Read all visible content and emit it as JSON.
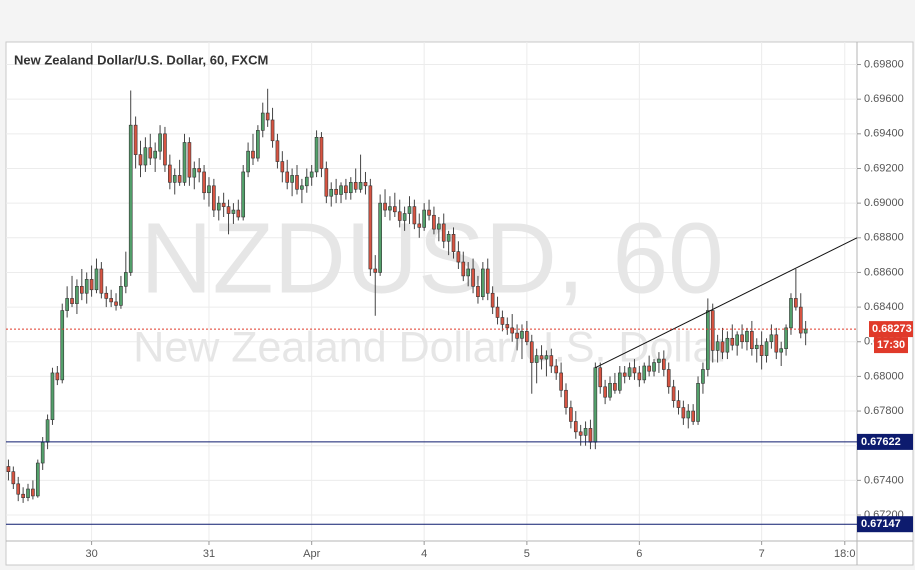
{
  "chart_data": {
    "type": "candlestick",
    "title": "New Zealand Dollar/U.S. Dollar, 60, FXCM",
    "watermark": [
      "NZDUSD, 60",
      "New Zealand Dollar/U.S. Dollar"
    ],
    "up_color": "#53a06b",
    "down_color": "#d75442",
    "grid": true,
    "xlim": [
      -0.5,
      173.5
    ],
    "xticks": [
      {
        "value": 17,
        "label": "30"
      },
      {
        "value": 41,
        "label": "31"
      },
      {
        "value": 62,
        "label": "Apr"
      },
      {
        "value": 85,
        "label": "4"
      },
      {
        "value": 106,
        "label": "5"
      },
      {
        "value": 129,
        "label": "6"
      },
      {
        "value": 154,
        "label": "7"
      },
      {
        "value": 171,
        "label": "18:0"
      }
    ],
    "ylim": [
      0.6705,
      0.6993
    ],
    "yticks": [
      {
        "value": 0.698,
        "label": "0.69800"
      },
      {
        "value": 0.696,
        "label": "0.69600"
      },
      {
        "value": 0.694,
        "label": "0.69400"
      },
      {
        "value": 0.692,
        "label": "0.69200"
      },
      {
        "value": 0.69,
        "label": "0.69000"
      },
      {
        "value": 0.688,
        "label": "0.68800"
      },
      {
        "value": 0.686,
        "label": "0.68600"
      },
      {
        "value": 0.684,
        "label": "0.68400"
      },
      {
        "value": 0.682,
        "label": "0.68200"
      },
      {
        "value": 0.68,
        "label": "0.68000"
      },
      {
        "value": 0.678,
        "label": "0.67800"
      },
      {
        "value": 0.676,
        "label": "0.67600"
      },
      {
        "value": 0.674,
        "label": "0.67400"
      },
      {
        "value": 0.672,
        "label": "0.67200"
      }
    ],
    "levels": [
      {
        "value": 0.67622,
        "label": "0.67622",
        "color": "#0d1b6e"
      },
      {
        "value": 0.67147,
        "label": "0.67147",
        "color": "#0d1b6e"
      }
    ],
    "last_price": {
      "value": 0.68273,
      "label": "0.68273",
      "countdown": "17:30",
      "color": "#e03a2a"
    },
    "trendline": {
      "x": [
        120,
        173.5
      ],
      "y": [
        0.6805,
        0.688
      ],
      "color": "#111111"
    },
    "ohlc": [
      [
        0.6748,
        0.6752,
        0.674,
        0.6745
      ],
      [
        0.6745,
        0.6748,
        0.6735,
        0.6738
      ],
      [
        0.6738,
        0.6742,
        0.6728,
        0.6732
      ],
      [
        0.6732,
        0.6736,
        0.6727,
        0.673
      ],
      [
        0.673,
        0.6738,
        0.6728,
        0.6735
      ],
      [
        0.6735,
        0.674,
        0.6729,
        0.6731
      ],
      [
        0.6731,
        0.6752,
        0.673,
        0.675
      ],
      [
        0.675,
        0.6765,
        0.6746,
        0.6762
      ],
      [
        0.6762,
        0.6778,
        0.6758,
        0.6775
      ],
      [
        0.6775,
        0.6805,
        0.6772,
        0.6802
      ],
      [
        0.6802,
        0.6806,
        0.6795,
        0.6798
      ],
      [
        0.6798,
        0.6842,
        0.6796,
        0.6838
      ],
      [
        0.6838,
        0.6852,
        0.6834,
        0.6845
      ],
      [
        0.6845,
        0.6858,
        0.684,
        0.6842
      ],
      [
        0.6842,
        0.6856,
        0.6836,
        0.6852
      ],
      [
        0.6852,
        0.6862,
        0.6844,
        0.6848
      ],
      [
        0.6848,
        0.686,
        0.6842,
        0.6856
      ],
      [
        0.6856,
        0.6864,
        0.6846,
        0.685
      ],
      [
        0.685,
        0.6868,
        0.6848,
        0.6862
      ],
      [
        0.6862,
        0.6866,
        0.6845,
        0.6848
      ],
      [
        0.6848,
        0.6852,
        0.684,
        0.6845
      ],
      [
        0.6845,
        0.685,
        0.684,
        0.6843
      ],
      [
        0.6843,
        0.6848,
        0.6838,
        0.6841
      ],
      [
        0.6841,
        0.6858,
        0.6839,
        0.6852
      ],
      [
        0.6852,
        0.6872,
        0.6848,
        0.686
      ],
      [
        0.686,
        0.6965,
        0.6858,
        0.6945
      ],
      [
        0.6945,
        0.695,
        0.692,
        0.6928
      ],
      [
        0.6928,
        0.6936,
        0.6915,
        0.6922
      ],
      [
        0.6922,
        0.6938,
        0.6918,
        0.6932
      ],
      [
        0.6932,
        0.694,
        0.6922,
        0.6926
      ],
      [
        0.6926,
        0.6935,
        0.6918,
        0.693
      ],
      [
        0.693,
        0.6945,
        0.6925,
        0.694
      ],
      [
        0.694,
        0.6944,
        0.6918,
        0.6922
      ],
      [
        0.6922,
        0.6928,
        0.6908,
        0.6912
      ],
      [
        0.6912,
        0.692,
        0.6905,
        0.6916
      ],
      [
        0.6916,
        0.6925,
        0.691,
        0.6912
      ],
      [
        0.6912,
        0.694,
        0.691,
        0.6935
      ],
      [
        0.6935,
        0.6938,
        0.691,
        0.6915
      ],
      [
        0.6915,
        0.6924,
        0.6908,
        0.692
      ],
      [
        0.692,
        0.6926,
        0.6912,
        0.6918
      ],
      [
        0.6918,
        0.6922,
        0.6902,
        0.6906
      ],
      [
        0.6906,
        0.6915,
        0.6898,
        0.691
      ],
      [
        0.691,
        0.6914,
        0.6892,
        0.6896
      ],
      [
        0.6896,
        0.6904,
        0.689,
        0.69
      ],
      [
        0.69,
        0.6906,
        0.6892,
        0.6898
      ],
      [
        0.6898,
        0.6902,
        0.6882,
        0.6894
      ],
      [
        0.6894,
        0.69,
        0.6888,
        0.6896
      ],
      [
        0.6896,
        0.6902,
        0.689,
        0.6892
      ],
      [
        0.6892,
        0.6922,
        0.689,
        0.6918
      ],
      [
        0.6918,
        0.6935,
        0.6915,
        0.693
      ],
      [
        0.693,
        0.694,
        0.6922,
        0.6926
      ],
      [
        0.6926,
        0.6945,
        0.6924,
        0.6942
      ],
      [
        0.6942,
        0.6958,
        0.6938,
        0.6952
      ],
      [
        0.6952,
        0.6966,
        0.6944,
        0.6948
      ],
      [
        0.6948,
        0.6955,
        0.6932,
        0.6936
      ],
      [
        0.6936,
        0.694,
        0.692,
        0.6924
      ],
      [
        0.6924,
        0.693,
        0.6912,
        0.6918
      ],
      [
        0.6918,
        0.6925,
        0.6908,
        0.6912
      ],
      [
        0.6912,
        0.692,
        0.6904,
        0.6916
      ],
      [
        0.6916,
        0.6922,
        0.6905,
        0.6908
      ],
      [
        0.6908,
        0.6914,
        0.69,
        0.691
      ],
      [
        0.691,
        0.692,
        0.6906,
        0.6915
      ],
      [
        0.6915,
        0.6922,
        0.691,
        0.6918
      ],
      [
        0.6918,
        0.6942,
        0.6915,
        0.6938
      ],
      [
        0.6938,
        0.6941,
        0.6915,
        0.692
      ],
      [
        0.692,
        0.6924,
        0.69,
        0.6904
      ],
      [
        0.6904,
        0.6912,
        0.6898,
        0.6908
      ],
      [
        0.6908,
        0.6914,
        0.69,
        0.6905
      ],
      [
        0.6905,
        0.6912,
        0.69,
        0.691
      ],
      [
        0.691,
        0.6914,
        0.6902,
        0.6906
      ],
      [
        0.6906,
        0.6915,
        0.6902,
        0.6912
      ],
      [
        0.6912,
        0.692,
        0.6906,
        0.6908
      ],
      [
        0.6908,
        0.6928,
        0.6906,
        0.6912
      ],
      [
        0.6912,
        0.6918,
        0.6905,
        0.691
      ],
      [
        0.691,
        0.6914,
        0.6858,
        0.6862
      ],
      [
        0.6862,
        0.687,
        0.6835,
        0.686
      ],
      [
        0.686,
        0.6905,
        0.6858,
        0.69
      ],
      [
        0.69,
        0.6908,
        0.6892,
        0.6896
      ],
      [
        0.6896,
        0.6904,
        0.689,
        0.6898
      ],
      [
        0.6898,
        0.6906,
        0.6892,
        0.6895
      ],
      [
        0.6895,
        0.6902,
        0.6886,
        0.689
      ],
      [
        0.689,
        0.6898,
        0.6884,
        0.6894
      ],
      [
        0.6894,
        0.6904,
        0.6888,
        0.6898
      ],
      [
        0.6898,
        0.6902,
        0.6885,
        0.6888
      ],
      [
        0.6888,
        0.6894,
        0.688,
        0.6886
      ],
      [
        0.6886,
        0.69,
        0.6884,
        0.6896
      ],
      [
        0.6896,
        0.6902,
        0.689,
        0.6893
      ],
      [
        0.6893,
        0.6898,
        0.6882,
        0.6885
      ],
      [
        0.6885,
        0.6892,
        0.6878,
        0.6888
      ],
      [
        0.6888,
        0.6894,
        0.6874,
        0.6878
      ],
      [
        0.6878,
        0.6884,
        0.687,
        0.6882
      ],
      [
        0.6882,
        0.6886,
        0.6868,
        0.6872
      ],
      [
        0.6872,
        0.6878,
        0.6862,
        0.6866
      ],
      [
        0.6866,
        0.6872,
        0.6855,
        0.6858
      ],
      [
        0.6858,
        0.6866,
        0.6852,
        0.6862
      ],
      [
        0.6862,
        0.6868,
        0.6848,
        0.6852
      ],
      [
        0.6852,
        0.6858,
        0.6842,
        0.6846
      ],
      [
        0.6846,
        0.6866,
        0.6844,
        0.6862
      ],
      [
        0.6862,
        0.6868,
        0.6844,
        0.6848
      ],
      [
        0.6848,
        0.6852,
        0.6836,
        0.684
      ],
      [
        0.684,
        0.6846,
        0.683,
        0.6834
      ],
      [
        0.6834,
        0.6838,
        0.6826,
        0.683
      ],
      [
        0.683,
        0.6834,
        0.6824,
        0.6828
      ],
      [
        0.6828,
        0.6836,
        0.682,
        0.6825
      ],
      [
        0.6825,
        0.683,
        0.6815,
        0.6822
      ],
      [
        0.6822,
        0.683,
        0.681,
        0.6826
      ],
      [
        0.6826,
        0.6832,
        0.6818,
        0.682
      ],
      [
        0.682,
        0.6824,
        0.679,
        0.6808
      ],
      [
        0.6808,
        0.6816,
        0.6796,
        0.6812
      ],
      [
        0.6812,
        0.6818,
        0.6804,
        0.681
      ],
      [
        0.681,
        0.6815,
        0.68,
        0.6812
      ],
      [
        0.6812,
        0.6816,
        0.6802,
        0.6806
      ],
      [
        0.6806,
        0.681,
        0.6798,
        0.6802
      ],
      [
        0.6802,
        0.6808,
        0.6788,
        0.6792
      ],
      [
        0.6792,
        0.6796,
        0.6778,
        0.6782
      ],
      [
        0.6782,
        0.6786,
        0.677,
        0.6774
      ],
      [
        0.6774,
        0.678,
        0.6764,
        0.6768
      ],
      [
        0.6768,
        0.6772,
        0.676,
        0.6766
      ],
      [
        0.6766,
        0.6774,
        0.676,
        0.677
      ],
      [
        0.677,
        0.6775,
        0.6758,
        0.6762
      ],
      [
        0.6762,
        0.6808,
        0.6758,
        0.6805
      ],
      [
        0.6805,
        0.6808,
        0.679,
        0.6794
      ],
      [
        0.6794,
        0.6798,
        0.6784,
        0.6788
      ],
      [
        0.6788,
        0.68,
        0.6786,
        0.6796
      ],
      [
        0.6796,
        0.6802,
        0.679,
        0.6792
      ],
      [
        0.6792,
        0.6806,
        0.679,
        0.6802
      ],
      [
        0.6802,
        0.6806,
        0.6796,
        0.68
      ],
      [
        0.68,
        0.6808,
        0.6798,
        0.6805
      ],
      [
        0.6805,
        0.681,
        0.6798,
        0.6802
      ],
      [
        0.6802,
        0.6806,
        0.6794,
        0.6798
      ],
      [
        0.6798,
        0.6808,
        0.6796,
        0.6806
      ],
      [
        0.6806,
        0.6812,
        0.68,
        0.6803
      ],
      [
        0.6803,
        0.681,
        0.68,
        0.6808
      ],
      [
        0.6808,
        0.6814,
        0.6802,
        0.681
      ],
      [
        0.681,
        0.6815,
        0.68,
        0.6804
      ],
      [
        0.6804,
        0.6808,
        0.679,
        0.6794
      ],
      [
        0.6794,
        0.6798,
        0.6782,
        0.6786
      ],
      [
        0.6786,
        0.6792,
        0.6778,
        0.6782
      ],
      [
        0.6782,
        0.6786,
        0.6772,
        0.6776
      ],
      [
        0.6776,
        0.6784,
        0.677,
        0.678
      ],
      [
        0.678,
        0.6784,
        0.6772,
        0.6774
      ],
      [
        0.6774,
        0.68,
        0.6772,
        0.6796
      ],
      [
        0.6796,
        0.6808,
        0.679,
        0.6804
      ],
      [
        0.6804,
        0.6845,
        0.68,
        0.6838
      ],
      [
        0.6838,
        0.6842,
        0.6808,
        0.6815
      ],
      [
        0.6815,
        0.6824,
        0.6808,
        0.682
      ],
      [
        0.682,
        0.6828,
        0.681,
        0.6814
      ],
      [
        0.6814,
        0.6826,
        0.681,
        0.6822
      ],
      [
        0.6822,
        0.683,
        0.6815,
        0.6818
      ],
      [
        0.6818,
        0.6826,
        0.6812,
        0.6824
      ],
      [
        0.6824,
        0.683,
        0.6816,
        0.682
      ],
      [
        0.682,
        0.6828,
        0.6815,
        0.6826
      ],
      [
        0.6826,
        0.6832,
        0.6812,
        0.6816
      ],
      [
        0.6816,
        0.6822,
        0.6808,
        0.6818
      ],
      [
        0.6818,
        0.6826,
        0.6804,
        0.6812
      ],
      [
        0.6812,
        0.6822,
        0.6808,
        0.682
      ],
      [
        0.682,
        0.683,
        0.6816,
        0.6824
      ],
      [
        0.6824,
        0.6828,
        0.681,
        0.6814
      ],
      [
        0.6814,
        0.682,
        0.6806,
        0.6816
      ],
      [
        0.6816,
        0.683,
        0.6812,
        0.6828
      ],
      [
        0.6828,
        0.6848,
        0.6824,
        0.6845
      ],
      [
        0.6845,
        0.6862,
        0.6838,
        0.684
      ],
      [
        0.684,
        0.6848,
        0.6822,
        0.6825
      ],
      [
        0.6825,
        0.6832,
        0.6818,
        0.68273
      ]
    ]
  }
}
